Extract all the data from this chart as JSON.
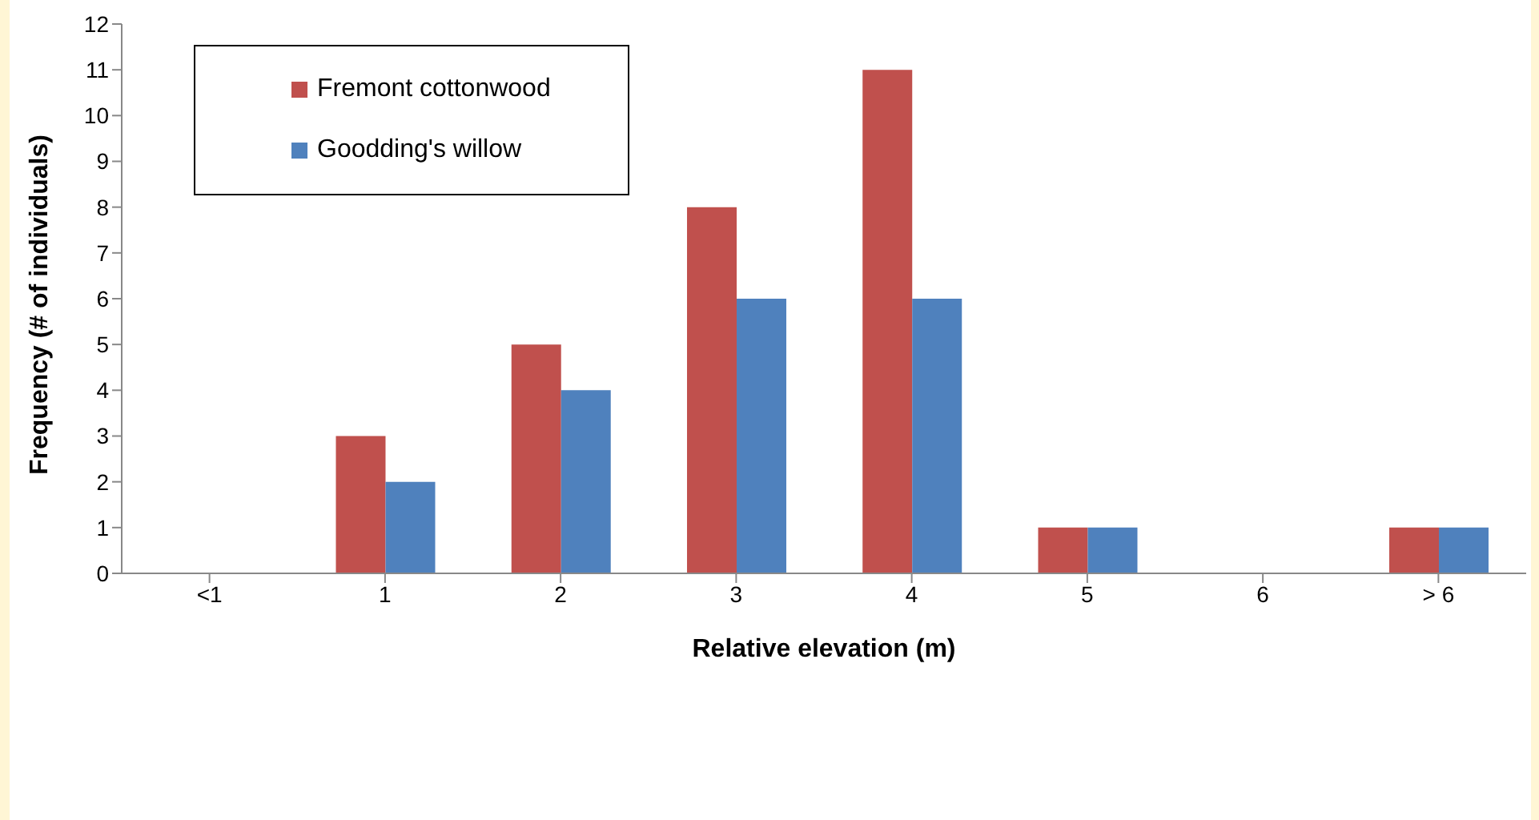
{
  "chart_data": {
    "type": "bar",
    "xlabel": "Relative elevation (m)",
    "ylabel": "Frequency (# of individuals)",
    "categories": [
      "<1",
      "1",
      "2",
      "3",
      "4",
      "5",
      "6",
      "> 6"
    ],
    "series": [
      {
        "name": "Fremont cottonwood",
        "color": "#c0504d",
        "values": [
          0,
          3,
          5,
          8,
          11,
          1,
          0,
          1
        ]
      },
      {
        "name": "Goodding's willow",
        "color": "#4f81bd",
        "values": [
          0,
          2,
          4,
          6,
          6,
          1,
          0,
          1
        ]
      }
    ],
    "ylim": [
      0,
      12
    ],
    "yticks": [
      0,
      1,
      2,
      3,
      4,
      5,
      6,
      7,
      8,
      9,
      10,
      11,
      12
    ],
    "grid": false,
    "legend": "top left"
  }
}
